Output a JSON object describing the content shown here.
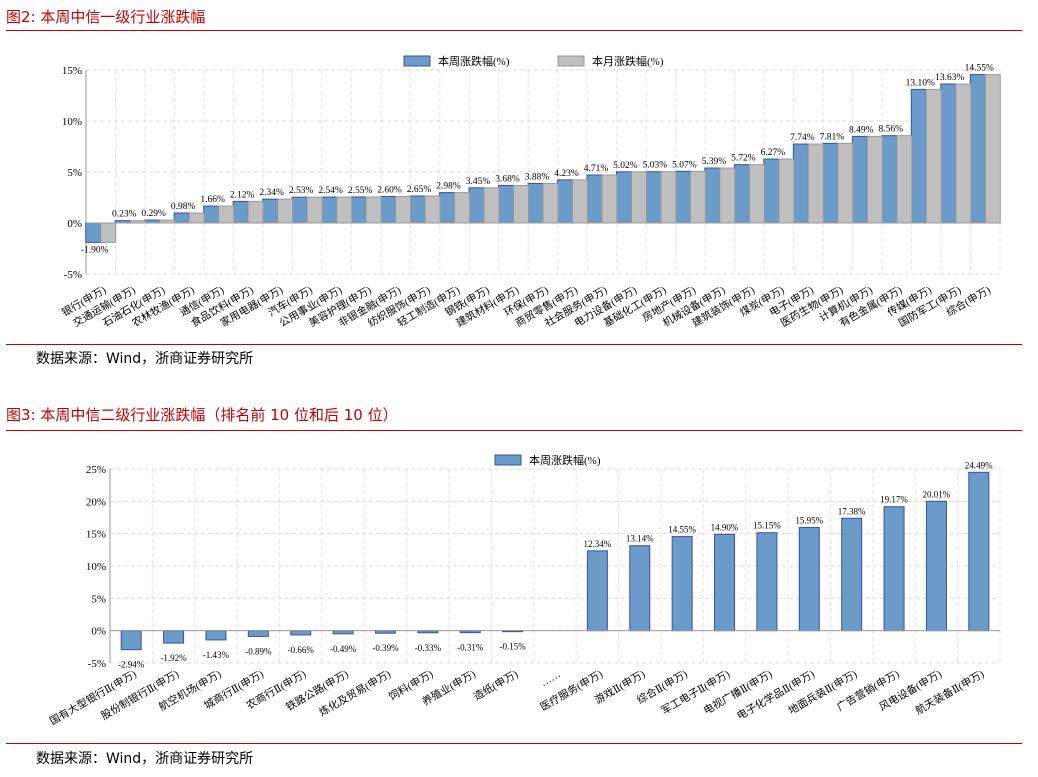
{
  "figures": [
    {
      "title": "图2:   本周中信一级行业涨跌幅",
      "source": "数据来源：Wind，浙商证券研究所"
    },
    {
      "title": "图3:   本周中信二级行业涨跌幅（排名前 10 位和后 10 位）",
      "source": "数据来源：Wind，浙商证券研究所"
    }
  ],
  "chart_data": [
    {
      "type": "bar",
      "title": "",
      "ylim": [
        -5,
        15
      ],
      "yticks": [
        "-5%",
        "0%",
        "5%",
        "10%",
        "15%"
      ],
      "ytick_values": [
        -5,
        0,
        5,
        10,
        15
      ],
      "grid": true,
      "legend_placement": "top",
      "categories": [
        "银行(申万)",
        "交通运输(申万)",
        "石油石化(申万)",
        "农林牧渔(申万)",
        "通信(申万)",
        "食品饮料(申万)",
        "家用电器(申万)",
        "汽车(申万)",
        "公用事业(申万)",
        "美容护理(申万)",
        "非银金融(申万)",
        "纺织服饰(申万)",
        "轻工制造(申万)",
        "钢铁(申万)",
        "建筑材料(申万)",
        "环保(申万)",
        "商贸零售(申万)",
        "社会服务(申万)",
        "电力设备(申万)",
        "基础化工(申万)",
        "房地产(申万)",
        "机械设备(申万)",
        "建筑装饰(申万)",
        "煤炭(申万)",
        "电子(申万)",
        "医药生物(申万)",
        "计算机(申万)",
        "有色金属(申万)",
        "传媒(申万)",
        "国防军工(申万)",
        "综合(申万)"
      ],
      "series": [
        {
          "name": "本周涨跌幅(%)",
          "color": "#6a9bc9",
          "values": [
            -1.9,
            0.23,
            0.29,
            0.98,
            1.66,
            2.12,
            2.34,
            2.53,
            2.54,
            2.55,
            2.6,
            2.65,
            2.98,
            3.45,
            3.68,
            3.88,
            4.23,
            4.71,
            5.02,
            5.03,
            5.07,
            5.39,
            5.72,
            6.27,
            7.74,
            7.81,
            8.49,
            8.56,
            13.1,
            13.63,
            14.55
          ],
          "labels": [
            "-1.90%",
            "0.23%",
            "0.29%",
            "0.98%",
            "1.66%",
            "2.12%",
            "2.34%",
            "2.53%",
            "2.54%",
            "2.55%",
            "2.60%",
            "2.65%",
            "2.98%",
            "3.45%",
            "3.68%",
            "3.88%",
            "4.23%",
            "4.71%",
            "5.02%",
            "5.03%",
            "5.07%",
            "5.39%",
            "5.72%",
            "6.27%",
            "7.74%",
            "7.81%",
            "8.49%",
            "8.56%",
            "13.10%",
            "13.63%",
            "14.55%"
          ]
        },
        {
          "name": "本月涨跌幅(%)",
          "color": "#bfbfbf",
          "values": [
            -1.9,
            0.23,
            0.29,
            0.98,
            1.66,
            2.12,
            2.34,
            2.53,
            2.54,
            2.55,
            2.6,
            2.65,
            2.98,
            3.45,
            3.68,
            3.88,
            4.23,
            4.71,
            5.02,
            5.03,
            5.07,
            5.39,
            5.72,
            6.27,
            7.74,
            7.81,
            8.49,
            8.56,
            13.1,
            13.63,
            14.55
          ]
        }
      ]
    },
    {
      "type": "bar",
      "title": "",
      "ylim": [
        -5,
        25
      ],
      "yticks": [
        "-5%",
        "0%",
        "5%",
        "10%",
        "15%",
        "20%",
        "25%"
      ],
      "ytick_values": [
        -5,
        0,
        5,
        10,
        15,
        20,
        25
      ],
      "grid": true,
      "legend_placement": "top",
      "categories": [
        "国有大型银行Ⅱ(申万)",
        "股份制银行Ⅱ(申万)",
        "航空机场(申万)",
        "城商行Ⅱ(申万)",
        "农商行Ⅱ(申万)",
        "铁路公路(申万)",
        "炼化及贸易(申万)",
        "饲料(申万)",
        "养殖业(申万)",
        "造纸(申万)",
        "……",
        "医疗服务(申万)",
        "游戏Ⅱ(申万)",
        "综合Ⅱ(申万)",
        "军工电子Ⅱ(申万)",
        "电视广播Ⅱ(申万)",
        "电子化学品Ⅱ(申万)",
        "地面兵装Ⅱ(申万)",
        "广告营销(申万)",
        "风电设备(申万)",
        "航天装备Ⅱ(申万)"
      ],
      "series": [
        {
          "name": "本周涨跌幅(%)",
          "color": "#6a9bc9",
          "values": [
            -2.94,
            -1.92,
            -1.43,
            -0.89,
            -0.66,
            -0.49,
            -0.39,
            -0.33,
            -0.31,
            -0.15,
            null,
            12.34,
            13.14,
            14.55,
            14.9,
            15.15,
            15.95,
            17.38,
            19.17,
            20.01,
            24.49
          ],
          "labels": [
            "-2.94%",
            "-1.92%",
            "-1.43%",
            "-0.89%",
            "-0.66%",
            "-0.49%",
            "-0.39%",
            "-0.33%",
            "-0.31%",
            "-0.15%",
            "",
            "12.34%",
            "13.14%",
            "14.55%",
            "14.90%",
            "15.15%",
            "15.95%",
            "17.38%",
            "19.17%",
            "20.01%",
            "24.49%"
          ]
        }
      ]
    }
  ]
}
